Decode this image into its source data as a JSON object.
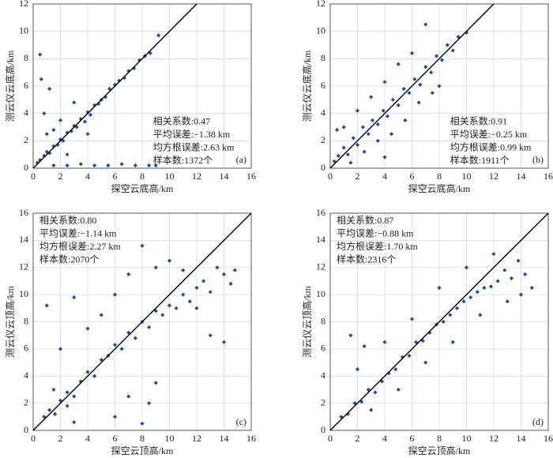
{
  "chart_data": [
    {
      "type": "scatter",
      "panel_label": "(a)",
      "xlabel": "探空云底高/km",
      "ylabel": "测云仪云底高/km",
      "annotations": [
        "相关系数:0.47",
        "平均误差:−1.38 km",
        "均方根误差:2.63 km",
        "样本数:1372个"
      ],
      "annotation_corner": "lower-right",
      "color": "#1f4e9c",
      "grid": true,
      "xlim": [
        0,
        16
      ],
      "xticks": [
        0,
        2,
        4,
        6,
        8,
        10,
        12,
        14,
        16
      ],
      "ylim": [
        0,
        12
      ],
      "yticks": [
        0,
        2,
        4,
        6,
        8,
        10,
        12
      ],
      "x": [
        0.3,
        0.5,
        0.8,
        1.0,
        1.2,
        1.5,
        1.8,
        2.0,
        2.2,
        2.5,
        2.8,
        3.0,
        3.2,
        3.5,
        3.8,
        4.0,
        4.2,
        4.5,
        4.8,
        5.0,
        5.3,
        5.6,
        6.0,
        6.3,
        6.7,
        7.0,
        7.4,
        7.8,
        8.2,
        8.6,
        9.2,
        0.5,
        0.6,
        0.8,
        1.0,
        1.2,
        1.5,
        2.5,
        3.5,
        4.5,
        5.5,
        6.5,
        7.5,
        8.5,
        9.0,
        2.0,
        3.0,
        4.0,
        1.5,
        2.5
      ],
      "values": [
        0.4,
        0.6,
        0.9,
        1.2,
        1.1,
        1.6,
        1.7,
        2.1,
        2.0,
        2.6,
        2.7,
        3.1,
        3.0,
        3.6,
        3.4,
        4.1,
        3.9,
        4.6,
        4.7,
        5.0,
        5.2,
        5.8,
        6.1,
        6.4,
        6.6,
        7.1,
        7.3,
        7.9,
        8.2,
        8.4,
        9.7,
        8.3,
        6.5,
        4.0,
        2.5,
        5.8,
        0.2,
        0.2,
        0.3,
        0.2,
        0.2,
        0.3,
        0.2,
        0.2,
        0.2,
        3.5,
        4.8,
        2.5,
        2.8,
        1.0
      ]
    },
    {
      "type": "scatter",
      "panel_label": "(b)",
      "xlabel": "探空云底高/km",
      "ylabel": "测云仪云底高/km",
      "annotations": [
        "相关系数:0.91",
        "平均误差:−0.25 km",
        "均方根误差:0.99 km",
        "样本数:1911个"
      ],
      "annotation_corner": "lower-right",
      "color": "#1f4e9c",
      "grid": true,
      "xlim": [
        0,
        16
      ],
      "xticks": [
        0,
        2,
        4,
        6,
        8,
        10,
        12,
        14,
        16
      ],
      "ylim": [
        0,
        12
      ],
      "yticks": [
        0,
        2,
        4,
        6,
        8,
        10,
        12
      ],
      "x": [
        0.3,
        0.6,
        1.0,
        1.3,
        1.7,
        2.0,
        2.4,
        2.8,
        3.1,
        3.5,
        3.9,
        4.2,
        4.6,
        5.0,
        5.4,
        5.8,
        6.2,
        6.6,
        7.0,
        7.4,
        7.8,
        8.2,
        8.6,
        9.0,
        9.4,
        10.0,
        1.0,
        2.0,
        3.0,
        4.0,
        5.0,
        6.0,
        7.0,
        8.0,
        1.5,
        2.5,
        3.5,
        4.5,
        5.5,
        6.5,
        7.5,
        0.5,
        4.0
      ],
      "values": [
        0.5,
        0.9,
        1.5,
        1.0,
        2.2,
        1.7,
        3.0,
        2.5,
        3.5,
        3.2,
        4.2,
        3.8,
        5.0,
        4.6,
        5.8,
        5.5,
        6.5,
        6.1,
        7.4,
        7.0,
        8.2,
        7.9,
        9.0,
        8.6,
        9.6,
        9.9,
        3.0,
        4.2,
        5.2,
        6.3,
        7.6,
        8.4,
        10.5,
        6.0,
        0.4,
        1.2,
        2.0,
        2.5,
        3.5,
        4.8,
        5.5,
        2.8,
        0.8
      ]
    },
    {
      "type": "scatter",
      "panel_label": "(c)",
      "xlabel": "探空云顶高/km",
      "ylabel": "测云仪云顶高/km",
      "annotations": [
        "相关系数:0.80",
        "平均误差:−1.14 km",
        "均方根误差:2.27 km",
        "样本数:2070个"
      ],
      "annotation_corner": "upper-left",
      "color": "#1f4e9c",
      "grid": true,
      "xlim": [
        0,
        16
      ],
      "xticks": [
        0,
        2,
        4,
        6,
        8,
        10,
        12,
        14,
        16
      ],
      "ylim": [
        0,
        16
      ],
      "yticks": [
        0,
        2,
        4,
        6,
        8,
        10,
        12,
        14,
        16
      ],
      "x": [
        0.8,
        1.2,
        1.6,
        2.0,
        2.5,
        3.0,
        3.5,
        4.0,
        4.5,
        5.0,
        5.5,
        6.0,
        6.5,
        7.0,
        7.5,
        8.0,
        8.5,
        9.0,
        9.5,
        10.0,
        10.5,
        11.0,
        11.5,
        12.0,
        12.5,
        13.0,
        13.5,
        14.0,
        14.5,
        14.8,
        1.0,
        2.0,
        3.0,
        4.0,
        5.0,
        6.0,
        7.0,
        8.0,
        9.0,
        10.0,
        11.0,
        12.0,
        13.0,
        14.0,
        6.0,
        7.0,
        8.0,
        8.5,
        9.0,
        3.0,
        2.5,
        1.5
      ],
      "values": [
        1.0,
        1.5,
        1.2,
        2.2,
        2.8,
        2.5,
        3.6,
        4.3,
        4.0,
        5.2,
        5.5,
        6.3,
        6.0,
        7.2,
        6.8,
        8.0,
        7.6,
        8.8,
        8.5,
        9.2,
        9.0,
        10.0,
        9.5,
        10.5,
        11.0,
        10.2,
        12.0,
        11.5,
        10.8,
        11.8,
        9.2,
        6.0,
        9.8,
        7.5,
        8.5,
        10.0,
        11.5,
        13.6,
        12.0,
        12.5,
        11.8,
        9.0,
        7.0,
        6.5,
        1.0,
        2.5,
        0.5,
        2.0,
        3.5,
        0.6,
        1.8,
        3.0
      ]
    },
    {
      "type": "scatter",
      "panel_label": "(d)",
      "xlabel": "探空云顶高/km",
      "ylabel": "测云仪云顶高/km",
      "annotations": [
        "相关系数:0.87",
        "平均误差:−0.88 km",
        "均方根误差:1.70 km",
        "样本数:2316个"
      ],
      "annotation_corner": "upper-left",
      "color": "#1f4e9c",
      "grid": true,
      "xlim": [
        0,
        16
      ],
      "xticks": [
        0,
        2,
        4,
        6,
        8,
        10,
        12,
        14,
        16
      ],
      "ylim": [
        0,
        16
      ],
      "yticks": [
        0,
        2,
        4,
        6,
        8,
        10,
        12,
        14,
        16
      ],
      "x": [
        0.8,
        1.3,
        1.8,
        2.3,
        2.8,
        3.3,
        3.8,
        4.3,
        4.8,
        5.3,
        5.8,
        6.3,
        6.8,
        7.3,
        7.8,
        8.3,
        8.8,
        9.3,
        9.8,
        10.3,
        10.8,
        11.3,
        11.8,
        12.3,
        12.8,
        13.3,
        13.8,
        14.3,
        14.8,
        2.0,
        4.0,
        6.0,
        8.0,
        10.0,
        12.0,
        14.0,
        3.0,
        5.0,
        7.0,
        9.0,
        11.0,
        13.0,
        1.5,
        2.5
      ],
      "values": [
        1.0,
        1.2,
        2.0,
        2.1,
        3.0,
        2.8,
        3.6,
        4.2,
        4.5,
        5.4,
        5.5,
        6.5,
        6.6,
        7.2,
        7.8,
        8.0,
        8.5,
        9.0,
        9.5,
        9.8,
        10.2,
        10.5,
        10.6,
        11.0,
        11.8,
        11.2,
        12.5,
        11.5,
        10.5,
        4.5,
        6.5,
        8.2,
        10.5,
        12.0,
        13.0,
        10.0,
        1.5,
        3.0,
        5.0,
        6.5,
        8.5,
        9.5,
        7.0,
        6.2
      ]
    }
  ]
}
